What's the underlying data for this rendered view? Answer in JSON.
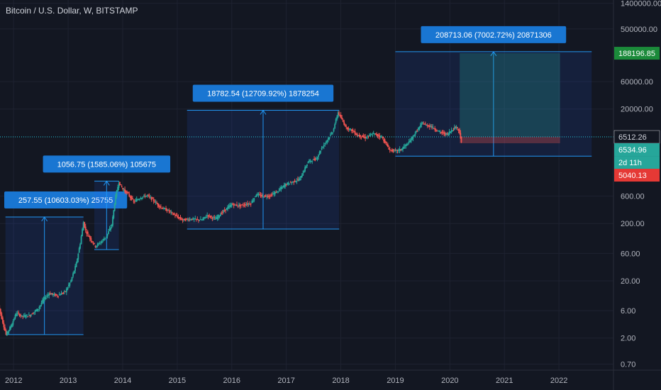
{
  "symbol_title": "Bitcoin / U.S. Dollar, W, BITSTAMP",
  "colors": {
    "background": "#131722",
    "grid": "#1e2230",
    "up": "#26a69a",
    "down": "#ef5350",
    "box_fill": "#2962ff",
    "box_stroke": "#2196f3",
    "label_bg": "#1976d2",
    "target_fill": "#1b5e20",
    "stop_fill": "#b71c1c",
    "current_line": "#26c6da"
  },
  "chart_data": {
    "type": "candlestick",
    "title": "Bitcoin / U.S. Dollar, W, BITSTAMP",
    "y_scale": "log",
    "ylim": [
      0.55,
      1600000
    ],
    "xlim": [
      2011.75,
      2023.0
    ],
    "x_ticks": [
      "2012",
      "2013",
      "2014",
      "2015",
      "2016",
      "2017",
      "2018",
      "2019",
      "2020",
      "2021",
      "2022"
    ],
    "y_ticks": [
      "1400000.00",
      "500000.00",
      "60000.00",
      "20000.00",
      "600.00",
      "200.00",
      "60.00",
      "20.00",
      "6.00",
      "2.00",
      "0.70"
    ],
    "price_series": [
      [
        2011.7,
        9
      ],
      [
        2011.78,
        4.5
      ],
      [
        2011.86,
        2.3
      ],
      [
        2011.95,
        3.2
      ],
      [
        2012.05,
        5.5
      ],
      [
        2012.15,
        4.8
      ],
      [
        2012.3,
        5.0
      ],
      [
        2012.45,
        6.5
      ],
      [
        2012.55,
        9.5
      ],
      [
        2012.65,
        12
      ],
      [
        2012.8,
        11
      ],
      [
        2012.95,
        13
      ],
      [
        2013.05,
        20
      ],
      [
        2013.15,
        40
      ],
      [
        2013.22,
        90
      ],
      [
        2013.28,
        210
      ],
      [
        2013.32,
        150
      ],
      [
        2013.4,
        110
      ],
      [
        2013.5,
        80
      ],
      [
        2013.6,
        95
      ],
      [
        2013.7,
        120
      ],
      [
        2013.8,
        190
      ],
      [
        2013.87,
        600
      ],
      [
        2013.93,
        1050
      ],
      [
        2014.0,
        800
      ],
      [
        2014.1,
        650
      ],
      [
        2014.2,
        480
      ],
      [
        2014.35,
        580
      ],
      [
        2014.45,
        620
      ],
      [
        2014.55,
        520
      ],
      [
        2014.7,
        380
      ],
      [
        2014.85,
        330
      ],
      [
        2015.0,
        260
      ],
      [
        2015.1,
        230
      ],
      [
        2015.25,
        240
      ],
      [
        2015.45,
        230
      ],
      [
        2015.55,
        280
      ],
      [
        2015.7,
        240
      ],
      [
        2015.85,
        330
      ],
      [
        2016.0,
        430
      ],
      [
        2016.15,
        410
      ],
      [
        2016.35,
        450
      ],
      [
        2016.45,
        650
      ],
      [
        2016.55,
        600
      ],
      [
        2016.7,
        610
      ],
      [
        2016.85,
        740
      ],
      [
        2016.98,
        960
      ],
      [
        2017.1,
        1050
      ],
      [
        2017.25,
        1200
      ],
      [
        2017.4,
        2400
      ],
      [
        2017.55,
        2700
      ],
      [
        2017.65,
        4200
      ],
      [
        2017.75,
        5800
      ],
      [
        2017.85,
        8000
      ],
      [
        2017.95,
        17500
      ],
      [
        2018.0,
        14000
      ],
      [
        2018.1,
        9500
      ],
      [
        2018.2,
        8500
      ],
      [
        2018.3,
        7000
      ],
      [
        2018.45,
        6300
      ],
      [
        2018.6,
        7400
      ],
      [
        2018.75,
        6500
      ],
      [
        2018.9,
        3800
      ],
      [
        2019.0,
        3700
      ],
      [
        2019.1,
        3900
      ],
      [
        2019.25,
        5200
      ],
      [
        2019.4,
        8500
      ],
      [
        2019.5,
        11500
      ],
      [
        2019.55,
        10500
      ],
      [
        2019.65,
        10000
      ],
      [
        2019.8,
        8000
      ],
      [
        2019.95,
        7200
      ],
      [
        2020.05,
        8900
      ],
      [
        2020.12,
        9900
      ],
      [
        2020.18,
        7800
      ],
      [
        2020.21,
        5040
      ]
    ],
    "measurements": [
      {
        "label": "257.55 (10603.03%) 25755",
        "x_start": 2011.85,
        "x_end": 2013.28,
        "y_low": 2.3,
        "y_high": 260
      },
      {
        "label": "1056.75 (1585.06%) 105675",
        "x_start": 2013.48,
        "x_end": 2013.93,
        "y_low": 70,
        "y_high": 1100
      },
      {
        "label": "18782.54 (12709.92%) 1878254",
        "x_start": 2015.18,
        "x_end": 2017.97,
        "y_low": 160,
        "y_high": 19000
      },
      {
        "label": "208713.06 (7002.72%) 20871306",
        "x_start": 2019.0,
        "x_end": 2022.6,
        "y_low": 3000,
        "y_high": 200000
      }
    ],
    "position": {
      "x_start": 2020.18,
      "x_end": 2022.02,
      "entry": 6534.96,
      "target": 188196.85,
      "stop": 5040.13
    },
    "current_price": 6512.26,
    "price_labels": [
      {
        "text": "188196.85",
        "value": 188196.85,
        "kind": "target"
      },
      {
        "text": "6512.26",
        "value": 6512.26,
        "kind": "current"
      },
      {
        "text": "6534.96",
        "value": 6534.96,
        "kind": "entry"
      },
      {
        "text": "2d 11h",
        "value": 3800,
        "kind": "countdown"
      },
      {
        "text": "5040.13",
        "value": 5040.13,
        "kind": "stop"
      }
    ]
  }
}
